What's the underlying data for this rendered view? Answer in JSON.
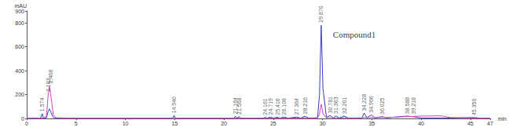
{
  "chart_data": {
    "type": "line",
    "x_label": "min",
    "y_label": "mAU",
    "x": [
      0,
      1.4,
      1.574,
      1.7,
      2.0,
      2.183,
      2.3,
      2.468,
      2.7,
      3.0,
      5,
      14.8,
      14.94,
      15.1,
      21.0,
      21.164,
      21.3,
      21.568,
      21.7,
      24.0,
      24.161,
      24.4,
      24.719,
      25.0,
      25.416,
      25.7,
      26.108,
      26.5,
      27.364,
      27.8,
      28.216,
      28.6,
      29.5,
      29.7,
      29.87,
      30.05,
      30.4,
      30.781,
      31.1,
      31.363,
      31.7,
      32.201,
      32.6,
      34.0,
      34.228,
      34.5,
      34.966,
      35.3,
      36.025,
      36.5,
      38.588,
      39.218,
      40.0,
      42.0,
      43.0,
      45.35,
      46,
      47
    ],
    "series": [
      {
        "color": "#3a3ac8",
        "values": [
          2,
          2,
          40,
          3,
          5,
          60,
          80,
          50,
          8,
          3,
          2,
          2,
          25,
          2,
          2,
          18,
          2,
          15,
          2,
          2,
          10,
          3,
          12,
          3,
          10,
          3,
          12,
          3,
          12,
          3,
          18,
          4,
          6,
          200,
          780,
          250,
          10,
          25,
          5,
          22,
          4,
          20,
          4,
          4,
          45,
          6,
          30,
          5,
          15,
          5,
          20,
          14,
          4,
          4,
          3,
          8,
          3,
          2
        ]
      },
      {
        "color": "#e040c0",
        "values": [
          1,
          1,
          5,
          2,
          20,
          200,
          270,
          180,
          30,
          5,
          2,
          2,
          8,
          2,
          2,
          6,
          2,
          5,
          2,
          2,
          3,
          2,
          4,
          2,
          3,
          2,
          4,
          2,
          4,
          2,
          6,
          2,
          3,
          40,
          120,
          40,
          4,
          8,
          3,
          6,
          2,
          6,
          3,
          4,
          10,
          6,
          8,
          6,
          8,
          8,
          15,
          18,
          20,
          22,
          8,
          3,
          2,
          2
        ]
      }
    ],
    "annotations": [
      {
        "x": 1.574,
        "y": 45,
        "text": "1.574"
      },
      {
        "x": 2.183,
        "y": 210,
        "text": "2.183"
      },
      {
        "x": 2.468,
        "y": 280,
        "text": "2.468"
      },
      {
        "x": 14.94,
        "y": 30,
        "text": "14.940"
      },
      {
        "x": 21.164,
        "y": 23,
        "text": "21.164"
      },
      {
        "x": 21.568,
        "y": 20,
        "text": "21.568"
      },
      {
        "x": 24.161,
        "y": 15,
        "text": "24.161"
      },
      {
        "x": 24.719,
        "y": 17,
        "text": "24.719"
      },
      {
        "x": 25.416,
        "y": 15,
        "text": "25.416"
      },
      {
        "x": 26.108,
        "y": 17,
        "text": "26.108"
      },
      {
        "x": 27.364,
        "y": 17,
        "text": "27.364"
      },
      {
        "x": 28.216,
        "y": 23,
        "text": "28.216"
      },
      {
        "x": 29.87,
        "y": 790,
        "text": "29.870"
      },
      {
        "x": 30.781,
        "y": 30,
        "text": "30.781"
      },
      {
        "x": 31.363,
        "y": 27,
        "text": "31.363"
      },
      {
        "x": 32.201,
        "y": 25,
        "text": "32.201"
      },
      {
        "x": 34.228,
        "y": 50,
        "text": "34.228"
      },
      {
        "x": 34.966,
        "y": 35,
        "text": "34.966"
      },
      {
        "x": 36.025,
        "y": 20,
        "text": "36.025"
      },
      {
        "x": 38.588,
        "y": 25,
        "text": "38.588"
      },
      {
        "x": 39.218,
        "y": 23,
        "text": "39.218"
      },
      {
        "x": 45.35,
        "y": 13,
        "text": "45.350"
      },
      {
        "x": 30.9,
        "y": 700,
        "text": "Compound1"
      }
    ],
    "xlim": [
      0,
      47
    ],
    "xticks": [
      0,
      5,
      10,
      15,
      20,
      25,
      30,
      35,
      40,
      45
    ],
    "ylim": [
      0,
      900
    ],
    "yticks": [
      0,
      200,
      400,
      600,
      800
    ],
    "grid": false
  }
}
